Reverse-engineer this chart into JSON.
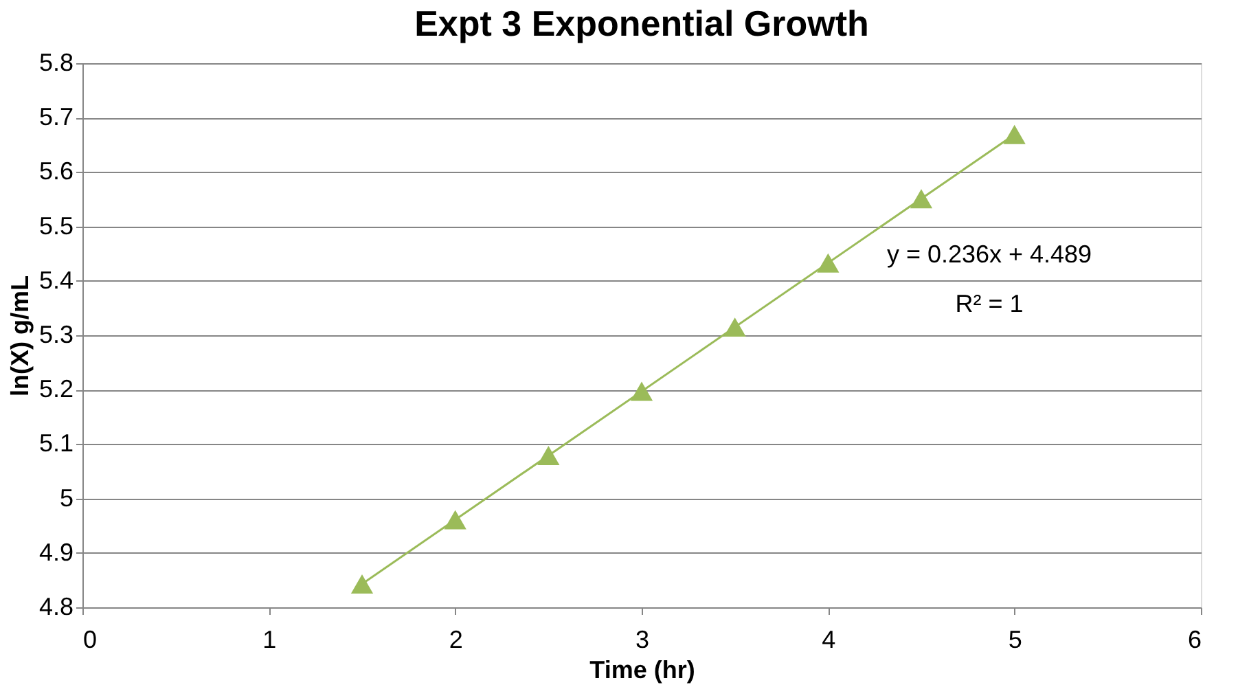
{
  "chart_data": {
    "type": "scatter",
    "title": "Expt 3 Exponential Growth",
    "xlabel": "Time (hr)",
    "ylabel": "ln(X) g/mL",
    "x": [
      1.5,
      2,
      2.5,
      3,
      3.5,
      4,
      4.5,
      5
    ],
    "series": [
      {
        "type": "scatter",
        "color": "#9bbb59",
        "marker": "triangle",
        "values": [
          4.843,
          4.961,
          5.079,
          5.197,
          5.315,
          5.433,
          5.551,
          5.669
        ]
      },
      {
        "type": "line",
        "color": "#9bbb59",
        "marker": "none",
        "line_style": "solid",
        "x": [
          1.5,
          5
        ],
        "values": [
          4.843,
          5.669
        ]
      }
    ],
    "xlim": [
      0,
      6
    ],
    "xticks": [
      0,
      1,
      2,
      3,
      4,
      5,
      6
    ],
    "ylim": [
      4.8,
      5.8
    ],
    "yticks": [
      4.8,
      4.9,
      5,
      5.1,
      5.2,
      5.3,
      5.4,
      5.5,
      5.6,
      5.7,
      5.8
    ],
    "grid": "y",
    "annotations": [
      "y = 0.236x + 4.489",
      "R² = 1"
    ]
  }
}
